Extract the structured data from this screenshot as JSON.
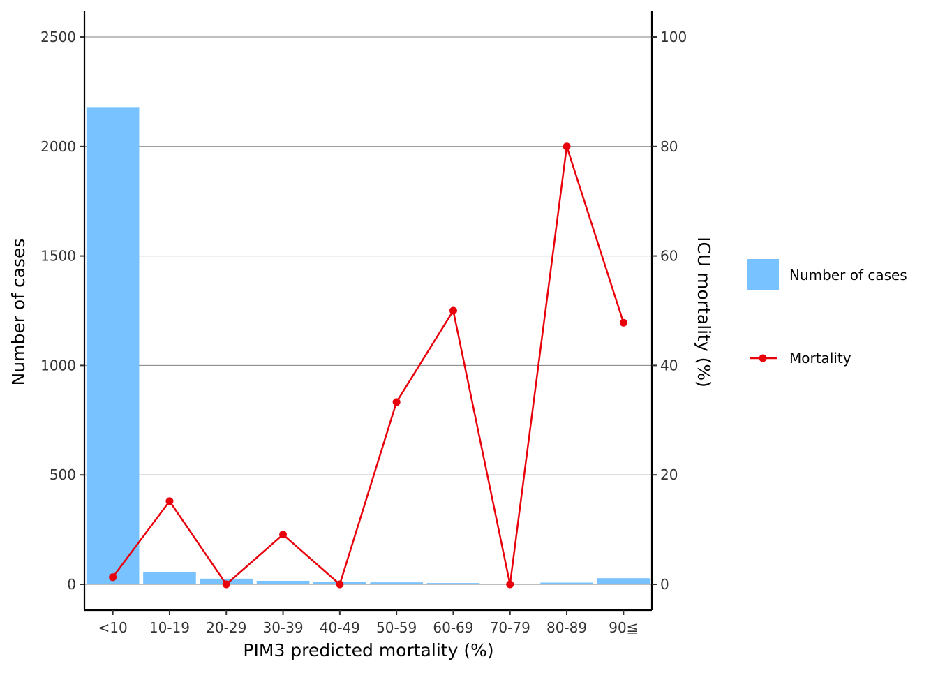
{
  "chart_data": {
    "type": "bar",
    "categories": [
      "<10",
      "10-19",
      "20-29",
      "30-39",
      "40-49",
      "50-59",
      "60-69",
      "70-79",
      "80-89",
      "90≦"
    ],
    "series": [
      {
        "name": "Number of cases",
        "type": "bar",
        "axis": "left",
        "color": "#77C2FF",
        "values": [
          2180,
          57,
          26,
          16,
          12,
          9,
          6,
          3,
          8,
          28
        ]
      },
      {
        "name": "Mortality",
        "type": "line",
        "axis": "right",
        "color": "#E8000B",
        "values": [
          1.3,
          15.2,
          0,
          9.1,
          0,
          33.3,
          50,
          0,
          80,
          47.8
        ]
      }
    ],
    "xlabel": "PIM3 predicted mortality (%)",
    "ylabel": "Number of cases",
    "y2label": "ICU mortality (%)",
    "ylim": [
      0,
      2500
    ],
    "y2lim": [
      0,
      100
    ],
    "yticks": [
      0,
      500,
      1000,
      1500,
      2000,
      2500
    ],
    "y2ticks": [
      0,
      20,
      40,
      60,
      80,
      100
    ],
    "grid": "horizontal",
    "legend": "right"
  }
}
